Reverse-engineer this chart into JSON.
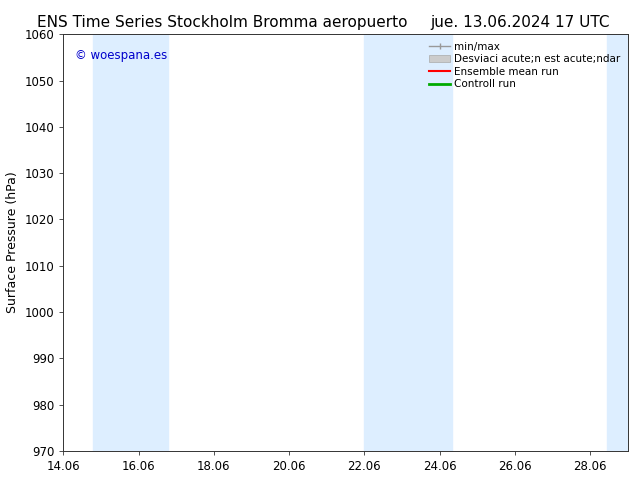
{
  "title_left": "ENS Time Series Stockholm Bromma aeropuerto",
  "title_right": "jue. 13.06.2024 17 UTC",
  "ylabel": "Surface Pressure (hPa)",
  "xlim": [
    14.06,
    29.06
  ],
  "ylim": [
    970,
    1060
  ],
  "xticks": [
    14.06,
    16.06,
    18.06,
    20.06,
    22.06,
    24.06,
    26.06,
    28.06
  ],
  "yticks": [
    970,
    980,
    990,
    1000,
    1010,
    1020,
    1030,
    1040,
    1050,
    1060
  ],
  "watermark": "© woespana.es",
  "watermark_color": "#0000cc",
  "bg_color": "#ffffff",
  "shaded_bands": [
    {
      "xmin": 14.85,
      "xmax": 16.85,
      "color": "#ddeeff"
    },
    {
      "xmin": 22.06,
      "xmax": 24.4,
      "color": "#ddeeff"
    },
    {
      "xmin": 28.5,
      "xmax": 29.2,
      "color": "#ddeeff"
    }
  ],
  "legend_labels": [
    "min/max",
    "Desviaci acute;n est acute;ndar",
    "Ensemble mean run",
    "Controll run"
  ],
  "legend_colors_line": [
    "#999999",
    "#bbbbbb",
    "#ff0000",
    "#00aa00"
  ],
  "title_fontsize": 11,
  "tick_fontsize": 8.5,
  "ylabel_fontsize": 9,
  "legend_fontsize": 7.5
}
